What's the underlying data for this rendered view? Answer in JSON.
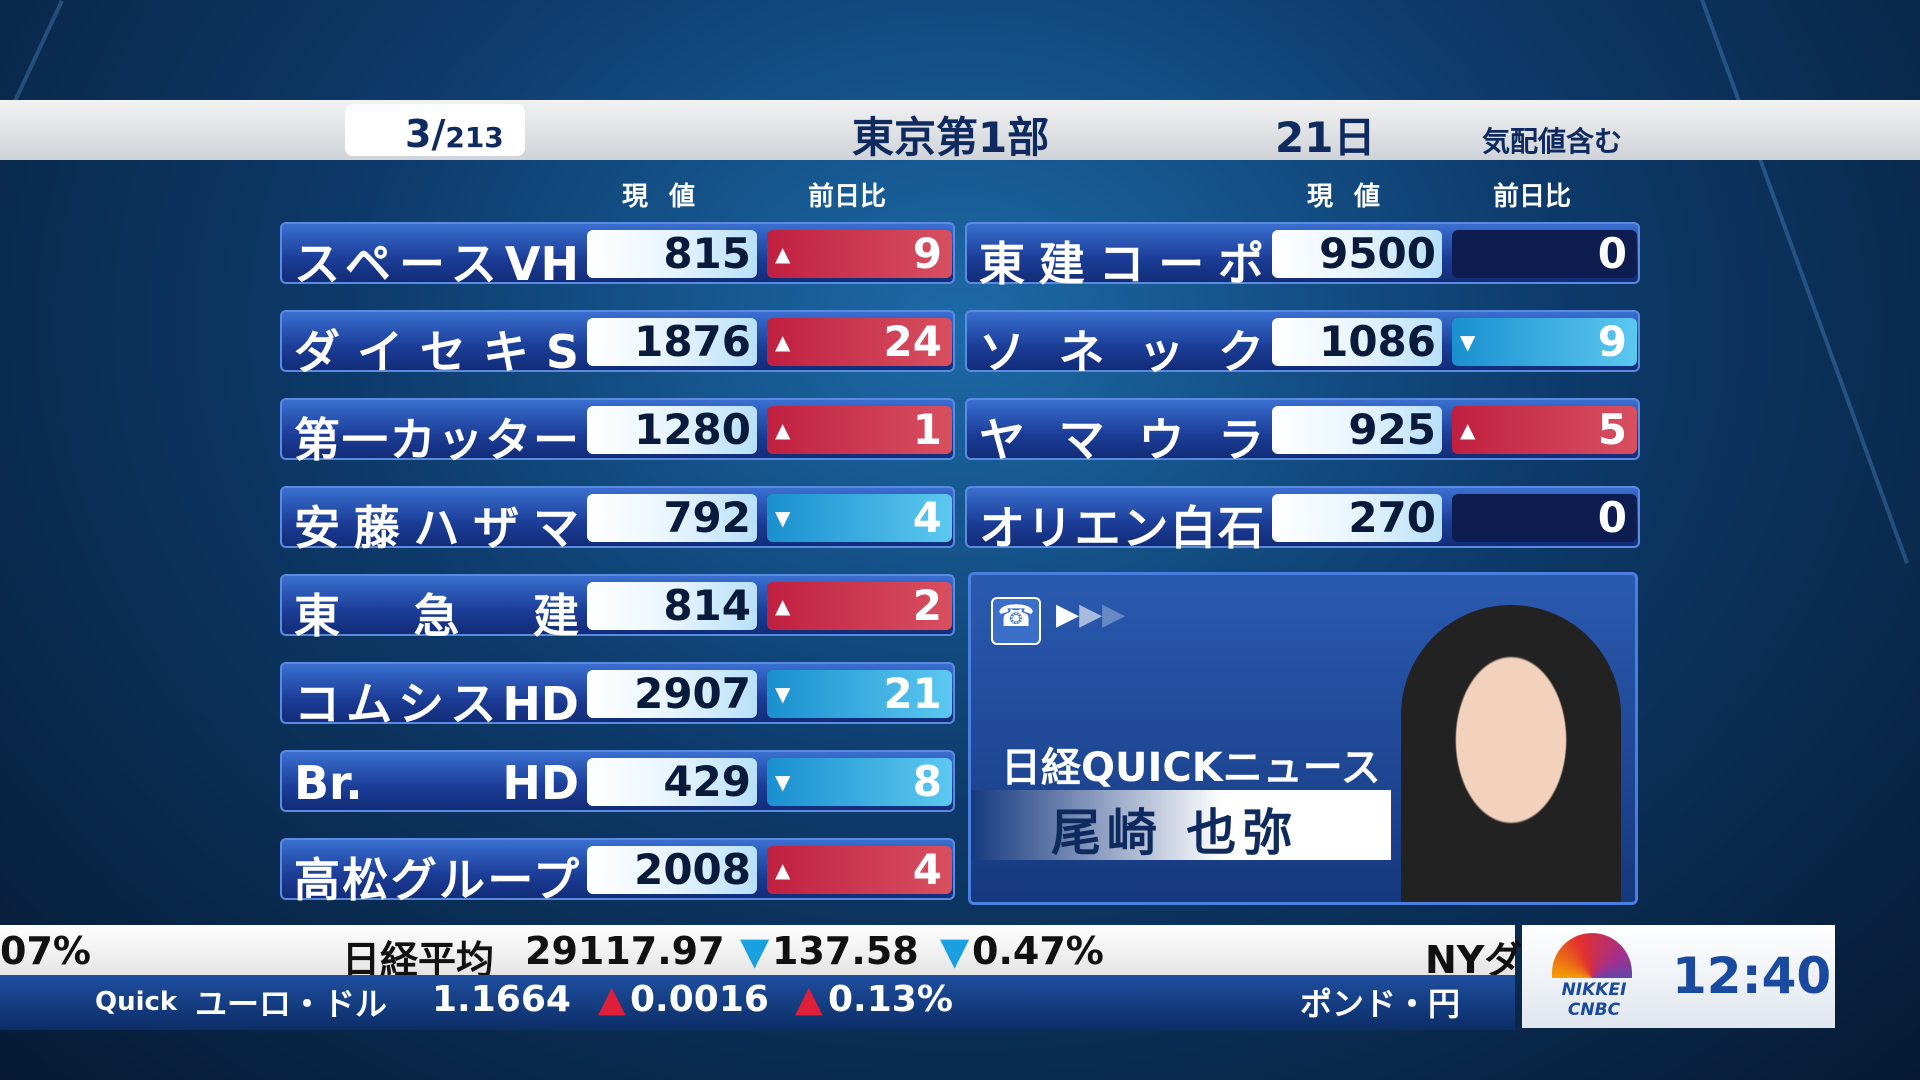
{
  "header": {
    "page_current": "3",
    "page_total": "213",
    "market": "東京第1部",
    "date": "21日",
    "note": "気配値含む"
  },
  "columns": {
    "price": "現 値",
    "change": "前日比"
  },
  "left": [
    {
      "name": "スペースVH",
      "price": "815",
      "change": "9",
      "dir": "up"
    },
    {
      "name": "ダイセキS",
      "price": "1876",
      "change": "24",
      "dir": "up"
    },
    {
      "name": "第一カッター",
      "price": "1280",
      "change": "1",
      "dir": "up"
    },
    {
      "name": "安藤ハザマ",
      "price": "792",
      "change": "4",
      "dir": "down"
    },
    {
      "name": "東 急 建",
      "price": "814",
      "change": "2",
      "dir": "up"
    },
    {
      "name": "コムシスHD",
      "price": "2907",
      "change": "21",
      "dir": "down"
    },
    {
      "name": "Br. HD",
      "price": "429",
      "change": "8",
      "dir": "down"
    },
    {
      "name": "高松グループ",
      "price": "2008",
      "change": "4",
      "dir": "up"
    }
  ],
  "right": [
    {
      "name": "東建コーポ",
      "price": "9500",
      "change": "0",
      "dir": "flat"
    },
    {
      "name": "ソネック",
      "price": "1086",
      "change": "9",
      "dir": "down"
    },
    {
      "name": "ヤマウラ",
      "price": "925",
      "change": "5",
      "dir": "up"
    },
    {
      "name": "オリエン白石",
      "price": "270",
      "change": "0",
      "dir": "flat"
    }
  ],
  "reporter": {
    "program": "日経QUICKニュース",
    "name": "尾崎 也弥",
    "icon": "phone-icon"
  },
  "ticker": {
    "line1": {
      "prev": "07%",
      "label": "日経平均",
      "value": "29117.97",
      "change": "137.58",
      "pct": "0.47%",
      "next": "NYダ"
    },
    "line2": {
      "source": "Quick",
      "label": "ユーロ・ドル",
      "value": "1.1664",
      "change": "0.0016",
      "pct": "0.13%",
      "next": "ポンド・円"
    }
  },
  "logo": {
    "brand": "NIKKEI CNBC",
    "time": "12:40"
  },
  "colors": {
    "up": "#c02040",
    "down": "#1a90d0",
    "flat": "#0d1d50",
    "navy": "#0e2a5e"
  }
}
